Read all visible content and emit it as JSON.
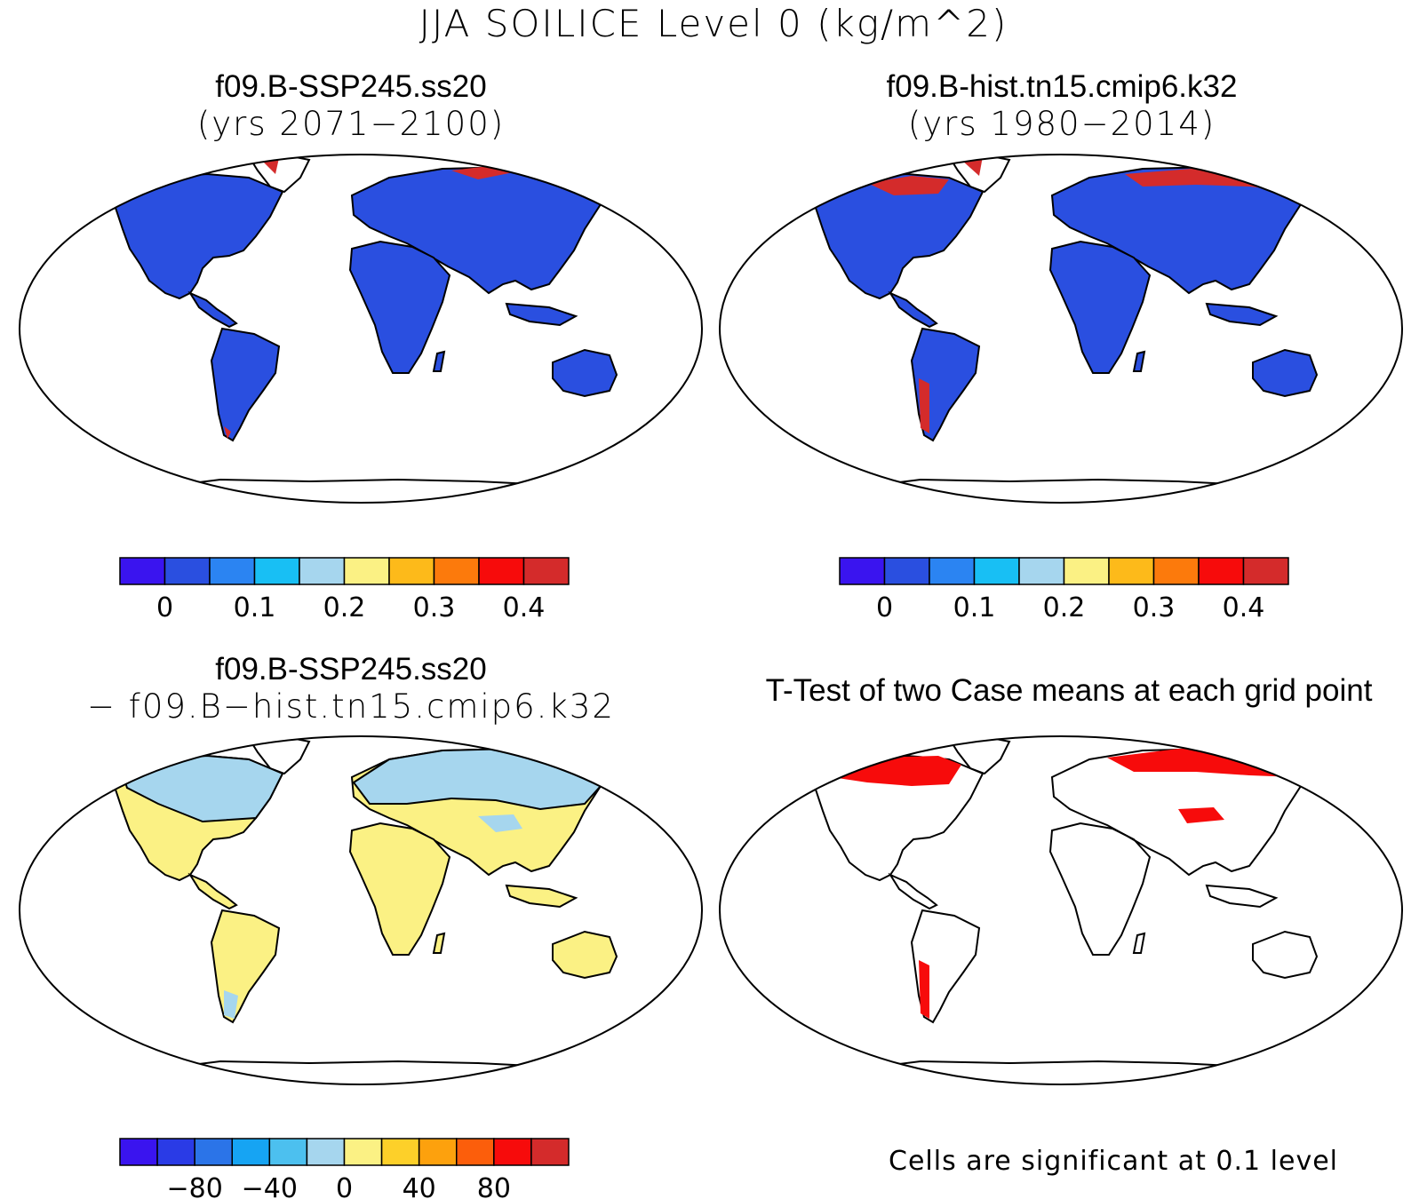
{
  "main_title": "JJA SOILICE Level 0 (kg/m^2)",
  "panels": [
    {
      "title": "f09.B-SSP245.ss20",
      "subtitle": "(yrs 2071−2100)",
      "fill": "test"
    },
    {
      "title": "f09.B-hist.tn15.cmip6.k32",
      "subtitle": "(yrs 1980−2014)",
      "fill": "control"
    },
    {
      "title": "f09.B-SSP245.ss20",
      "subtitle": "− f09.B−hist.tn15.cmip6.k32",
      "fill": "diff"
    },
    {
      "title": "T-Test of two Case means at each grid point",
      "subtitle": "",
      "fill": "ttest"
    }
  ],
  "colorbars": {
    "abs": {
      "colors": [
        "#3a14ef",
        "#2a4fe0",
        "#2b84f2",
        "#18bff4",
        "#a6d6ee",
        "#fbf184",
        "#fdba1a",
        "#fc7a0c",
        "#f70b0b",
        "#d42b2b"
      ],
      "ticks": [
        "0",
        "0.1",
        "0.2",
        "0.3",
        "0.4"
      ]
    },
    "diff": {
      "colors": [
        "#3a14ef",
        "#2a3be6",
        "#2b74e8",
        "#16a4f3",
        "#4cc0ef",
        "#a6d6ee",
        "#fbf184",
        "#fdd029",
        "#fda10d",
        "#fc5e0b",
        "#f70b0b",
        "#d42b2b"
      ],
      "ticks": [
        "−80",
        "−40",
        "0",
        "40",
        "80"
      ]
    }
  },
  "significance_note": "Cells are significant at 0.1 level",
  "colors": {
    "land_blue": "#2a4fe0",
    "land_yellow": "#fbf184",
    "land_lightblue": "#a6d6ee",
    "hot_red": "#d42b2b",
    "sig_red": "#f70b0b"
  }
}
